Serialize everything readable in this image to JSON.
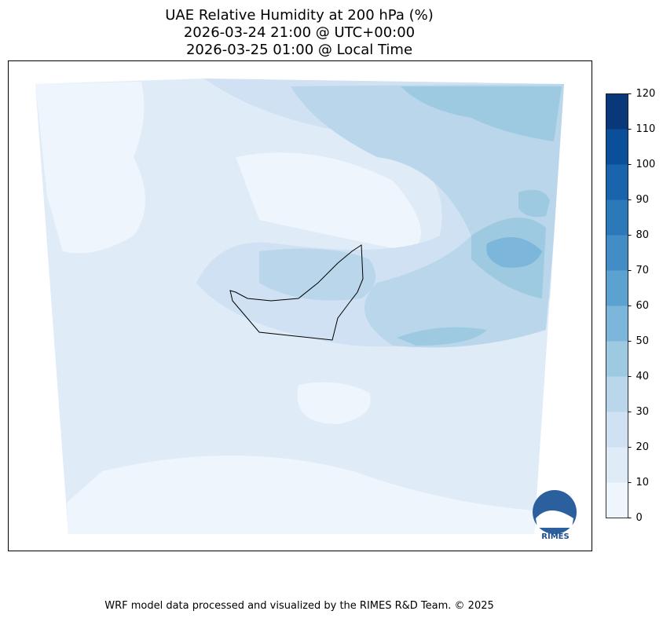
{
  "title": [
    "UAE Relative Humidity at 200 hPa (%)",
    "2026-03-24 21:00 @ UTC+00:00",
    "2026-03-25 01:00 @ Local Time"
  ],
  "colorbar": {
    "lim": [
      0,
      120
    ],
    "ticks": [
      0,
      10,
      20,
      30,
      40,
      50,
      60,
      70,
      80,
      90,
      100,
      110,
      120
    ],
    "colors": [
      "#eef5fc",
      "#dfebf7",
      "#cfe1f2",
      "#b9d6ea",
      "#9dcae1",
      "#7cb6da",
      "#5ca2d0",
      "#428dc5",
      "#2c79b9",
      "#1a64ad",
      "#0b4f9b",
      "#08377a"
    ]
  },
  "logo": "RIMES",
  "footer": "WRF model data processed and visualized by the RIMES R&D Team. © 2025"
}
